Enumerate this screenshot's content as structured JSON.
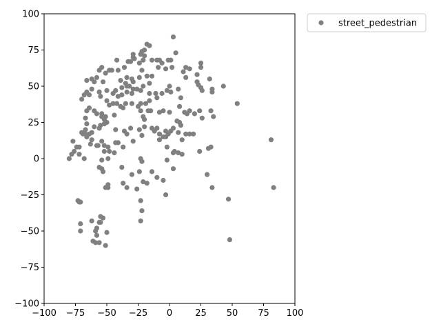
{
  "chart_data": {
    "type": "scatter",
    "title": "",
    "xlabel": "",
    "ylabel": "",
    "xlim": [
      -100,
      100
    ],
    "ylim": [
      -100,
      100
    ],
    "xticks": [
      -100,
      -75,
      -50,
      -25,
      0,
      25,
      50,
      75,
      100
    ],
    "yticks": [
      -100,
      -75,
      -50,
      -25,
      0,
      25,
      50,
      75,
      100
    ],
    "grid": false,
    "legend_position": "outside-top-right",
    "series": [
      {
        "name": "street_pedestrian",
        "color": "#808080",
        "marker": "circle",
        "points": [
          [
            3,
            84
          ],
          [
            5,
            73
          ],
          [
            -18,
            79
          ],
          [
            -16,
            78
          ],
          [
            -20,
            75
          ],
          [
            -22,
            74
          ],
          [
            -29,
            72
          ],
          [
            -29,
            70
          ],
          [
            -23,
            72
          ],
          [
            -20,
            71
          ],
          [
            -10,
            68
          ],
          [
            -8,
            68
          ],
          [
            -14,
            68
          ],
          [
            -6,
            66
          ],
          [
            -1,
            68
          ],
          [
            1,
            68
          ],
          [
            -3,
            62
          ],
          [
            2,
            63
          ],
          [
            -9,
            63
          ],
          [
            -21,
            68
          ],
          [
            -24,
            66
          ],
          [
            -33,
            67
          ],
          [
            -31,
            67
          ],
          [
            -28,
            69
          ],
          [
            -42,
            68
          ],
          [
            -36,
            63
          ],
          [
            -41,
            61
          ],
          [
            -48,
            61
          ],
          [
            -51,
            59
          ],
          [
            -46,
            61
          ],
          [
            -54,
            63
          ],
          [
            -56,
            61
          ],
          [
            -58,
            56
          ],
          [
            -62,
            55
          ],
          [
            -66,
            54
          ],
          [
            -60,
            53
          ],
          [
            -53,
            53
          ],
          [
            -39,
            54
          ],
          [
            -34,
            56
          ],
          [
            -30,
            55
          ],
          [
            -29,
            53
          ],
          [
            -35,
            52
          ],
          [
            -32,
            50
          ],
          [
            -24,
            56
          ],
          [
            -22,
            61
          ],
          [
            -18,
            57
          ],
          [
            -14,
            57
          ],
          [
            -16,
            52
          ],
          [
            -21,
            50
          ],
          [
            -26,
            48
          ],
          [
            -23,
            47
          ],
          [
            -29,
            48
          ],
          [
            -34,
            50
          ],
          [
            -38,
            49
          ],
          [
            -43,
            47
          ],
          [
            -45,
            45
          ],
          [
            -41,
            43
          ],
          [
            -38,
            44
          ],
          [
            -34,
            46
          ],
          [
            -30,
            45
          ],
          [
            -50,
            47
          ],
          [
            -56,
            46
          ],
          [
            -62,
            48
          ],
          [
            -64,
            44
          ],
          [
            -66,
            46
          ],
          [
            -68,
            44
          ],
          [
            -70,
            41
          ],
          [
            -55,
            43
          ],
          [
            -50,
            40
          ],
          [
            -48,
            37
          ],
          [
            -45,
            38
          ],
          [
            -42,
            38
          ],
          [
            -39,
            36
          ],
          [
            -37,
            35
          ],
          [
            -35,
            38
          ],
          [
            -30,
            38
          ],
          [
            -25,
            36
          ],
          [
            -23,
            38
          ],
          [
            -19,
            38
          ],
          [
            -16,
            40
          ],
          [
            -16,
            45
          ],
          [
            -11,
            45
          ],
          [
            -10,
            42
          ],
          [
            -6,
            45
          ],
          [
            -2,
            47
          ],
          [
            0,
            50
          ],
          [
            1,
            46
          ],
          [
            7,
            48
          ],
          [
            9,
            42
          ],
          [
            11,
            60
          ],
          [
            13,
            56
          ],
          [
            13,
            63
          ],
          [
            16,
            62
          ],
          [
            22,
            58
          ],
          [
            22,
            53
          ],
          [
            23,
            51
          ],
          [
            25,
            49
          ],
          [
            26,
            47
          ],
          [
            25,
            63
          ],
          [
            25,
            66
          ],
          [
            32,
            55
          ],
          [
            34,
            48
          ],
          [
            34,
            46
          ],
          [
            43,
            50
          ],
          [
            54,
            38
          ],
          [
            -64,
            35
          ],
          [
            -66,
            33
          ],
          [
            -60,
            33
          ],
          [
            -58,
            31
          ],
          [
            -54,
            31
          ],
          [
            -54,
            29
          ],
          [
            -51,
            29
          ],
          [
            -52,
            27
          ],
          [
            -50,
            25
          ],
          [
            -52,
            24
          ],
          [
            -55,
            23
          ],
          [
            -60,
            22
          ],
          [
            -66,
            24
          ],
          [
            -67,
            28
          ],
          [
            -67,
            20
          ],
          [
            -70,
            18
          ],
          [
            -64,
            17
          ],
          [
            -66,
            15
          ],
          [
            -62,
            13
          ],
          [
            -63,
            10
          ],
          [
            -67,
            17
          ],
          [
            -69,
            17
          ],
          [
            -62,
            18
          ],
          [
            -56,
            21
          ],
          [
            -44,
            30
          ],
          [
            -43,
            20
          ],
          [
            -36,
            19
          ],
          [
            -34,
            17
          ],
          [
            -31,
            21
          ],
          [
            -24,
            20
          ],
          [
            -20,
            22
          ],
          [
            -21,
            29
          ],
          [
            -20,
            27
          ],
          [
            -23,
            33
          ],
          [
            -17,
            33
          ],
          [
            -15,
            33
          ],
          [
            -8,
            32
          ],
          [
            -5,
            33
          ],
          [
            0,
            32
          ],
          [
            8,
            36
          ],
          [
            12,
            32
          ],
          [
            14,
            31
          ],
          [
            16,
            33
          ],
          [
            20,
            31
          ],
          [
            24,
            33
          ],
          [
            26,
            28
          ],
          [
            33,
            33
          ],
          [
            35,
            29
          ],
          [
            6,
            26
          ],
          [
            8,
            25
          ],
          [
            9,
            23
          ],
          [
            -14,
            21
          ],
          [
            -12,
            19
          ],
          [
            -10,
            21
          ],
          [
            -8,
            17
          ],
          [
            -5,
            15
          ],
          [
            -3,
            15
          ],
          [
            -1,
            17
          ],
          [
            -3,
            19
          ],
          [
            1,
            19
          ],
          [
            3,
            21
          ],
          [
            7,
            18
          ],
          [
            10,
            13
          ],
          [
            13,
            17
          ],
          [
            16,
            17
          ],
          [
            19,
            17
          ],
          [
            -77,
            12
          ],
          [
            -74,
            8
          ],
          [
            -72,
            8
          ],
          [
            -76,
            5
          ],
          [
            -72,
            3
          ],
          [
            -78,
            3
          ],
          [
            -80,
            0
          ],
          [
            -68,
            0
          ],
          [
            -54,
            12
          ],
          [
            -52,
            9
          ],
          [
            -49,
            8
          ],
          [
            -57,
            9
          ],
          [
            -58,
            9
          ],
          [
            -52,
            5
          ],
          [
            -48,
            5
          ],
          [
            -43,
            11
          ],
          [
            -41,
            11
          ],
          [
            -44,
            4
          ],
          [
            -37,
            8
          ],
          [
            -29,
            12
          ],
          [
            -22,
            16
          ],
          [
            -8,
            13
          ],
          [
            -2,
            8
          ],
          [
            3,
            4
          ],
          [
            4,
            5
          ],
          [
            7,
            4
          ],
          [
            10,
            3
          ],
          [
            24,
            5
          ],
          [
            31,
            7
          ],
          [
            33,
            8
          ],
          [
            -54,
            -1
          ],
          [
            -49,
            0
          ],
          [
            -56,
            -6
          ],
          [
            -54,
            -7
          ],
          [
            -53,
            -9
          ],
          [
            -38,
            -6
          ],
          [
            -24,
            -9
          ],
          [
            -23,
            0
          ],
          [
            -22,
            -2
          ],
          [
            -2,
            -1
          ],
          [
            3,
            -7
          ],
          [
            -14,
            -9
          ],
          [
            -10,
            -13
          ],
          [
            -5,
            -15
          ],
          [
            -18,
            -17
          ],
          [
            -21,
            -16
          ],
          [
            -3,
            -25
          ],
          [
            -37,
            -17
          ],
          [
            -49,
            -18
          ],
          [
            -51,
            -20
          ],
          [
            -49,
            -20
          ],
          [
            -30,
            -11
          ],
          [
            -34,
            -20
          ],
          [
            -26,
            -21
          ],
          [
            -23,
            -29
          ],
          [
            -22,
            -36
          ],
          [
            -23,
            -43
          ],
          [
            30,
            -11
          ],
          [
            34,
            -20
          ],
          [
            47,
            -28
          ],
          [
            48,
            -56
          ],
          [
            81,
            13
          ],
          [
            83,
            -20
          ],
          [
            -73,
            -29
          ],
          [
            -72,
            -30
          ],
          [
            -71,
            -30
          ],
          [
            -71,
            -45
          ],
          [
            -71,
            -50
          ],
          [
            -62,
            -43
          ],
          [
            -56,
            -44
          ],
          [
            -55,
            -44
          ],
          [
            -55,
            -40
          ],
          [
            -53,
            -41
          ],
          [
            -50,
            -51
          ],
          [
            -58,
            -48
          ],
          [
            -59,
            -50
          ],
          [
            -58,
            -53
          ],
          [
            -61,
            -57
          ],
          [
            -59,
            -58
          ],
          [
            -56,
            -58
          ],
          [
            -51,
            -60
          ]
        ]
      }
    ]
  }
}
